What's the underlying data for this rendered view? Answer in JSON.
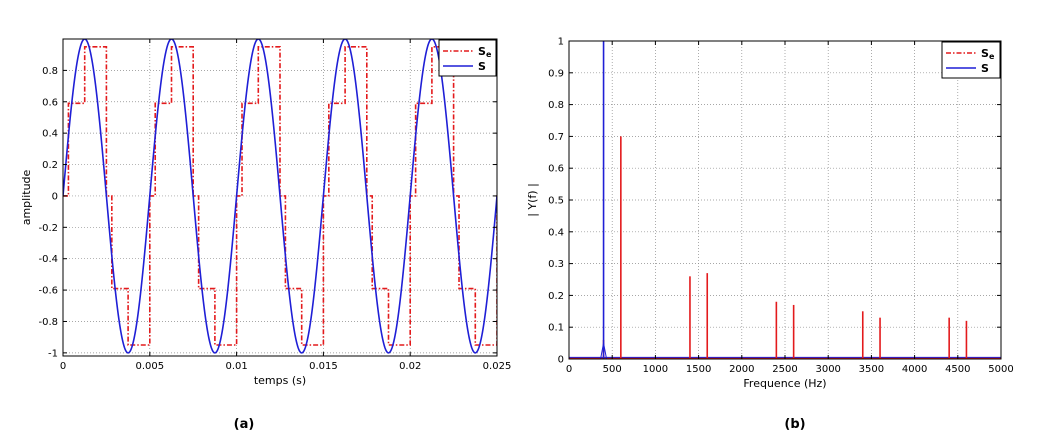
{
  "chart_data": [
    {
      "type": "line",
      "xlabel": "temps (s)",
      "ylabel": "amplitude",
      "xlim": [
        0,
        0.025
      ],
      "ylim": [
        -1.02,
        1
      ],
      "xticks": [
        0,
        0.005,
        0.01,
        0.015,
        0.02,
        0.025
      ],
      "xtick_labels": [
        "0",
        "0.005",
        "0.01",
        "0.015",
        "0.02",
        "0.025"
      ],
      "yticks": [
        -1,
        -0.8,
        -0.6,
        -0.4,
        -0.2,
        0,
        0.2,
        0.4,
        0.6,
        0.8
      ],
      "ytick_labels": [
        "-1",
        "-0.8",
        "-0.6",
        "-0.4",
        "-0.2",
        "0",
        "0.2",
        "0.4",
        "0.6",
        "0.8"
      ],
      "grid": true,
      "legend_position": "top-right",
      "caption": "(a)",
      "series": [
        {
          "name": "S",
          "name_subscript": "e",
          "color": "#e31a1c",
          "style": "dash-dot",
          "period": 0.005,
          "levels": [
            0,
            0.59,
            0.95,
            0,
            -0.59,
            -0.95
          ],
          "step_phases": [
            0,
            0.125,
            0.5,
            0.625,
            1.0
          ]
        },
        {
          "name": "S",
          "color": "#1f1fd6",
          "style": "solid",
          "period": 0.005,
          "amplitude": 1
        }
      ]
    },
    {
      "type": "line",
      "xlabel": "Frequence (Hz)",
      "ylabel": "| Y(f) |",
      "xlim": [
        0,
        5000
      ],
      "ylim": [
        0,
        1
      ],
      "xticks": [
        0,
        500,
        1000,
        1500,
        2000,
        2500,
        3000,
        3500,
        4000,
        4500,
        5000
      ],
      "xtick_labels": [
        "0",
        "500",
        "1000",
        "1500",
        "2000",
        "2500",
        "3000",
        "3500",
        "4000",
        "4500",
        "5000"
      ],
      "yticks": [
        0,
        0.1,
        0.2,
        0.3,
        0.4,
        0.5,
        0.6,
        0.7,
        0.8,
        0.9,
        1
      ],
      "ytick_labels": [
        "0",
        "0.1",
        "0.2",
        "0.3",
        "0.4",
        "0.5",
        "0.6",
        "0.7",
        "0.8",
        "0.9",
        "1"
      ],
      "grid": true,
      "legend_position": "top-right",
      "caption": "(b)",
      "series": [
        {
          "name": "S",
          "name_subscript": "e",
          "color": "#e31a1c",
          "style": "dash-dot",
          "peaks": [
            {
              "x": 400,
              "y": 0.06
            },
            {
              "x": 600,
              "y": 0.7
            },
            {
              "x": 1400,
              "y": 0.26
            },
            {
              "x": 1600,
              "y": 0.27
            },
            {
              "x": 2400,
              "y": 0.18
            },
            {
              "x": 2600,
              "y": 0.17
            },
            {
              "x": 3400,
              "y": 0.15
            },
            {
              "x": 3600,
              "y": 0.13
            },
            {
              "x": 4400,
              "y": 0.13
            },
            {
              "x": 4600,
              "y": 0.12
            }
          ]
        },
        {
          "name": "S",
          "color": "#1f1fd6",
          "style": "solid",
          "peaks": [
            {
              "x": 400,
              "y": 1.0
            }
          ]
        }
      ]
    }
  ]
}
